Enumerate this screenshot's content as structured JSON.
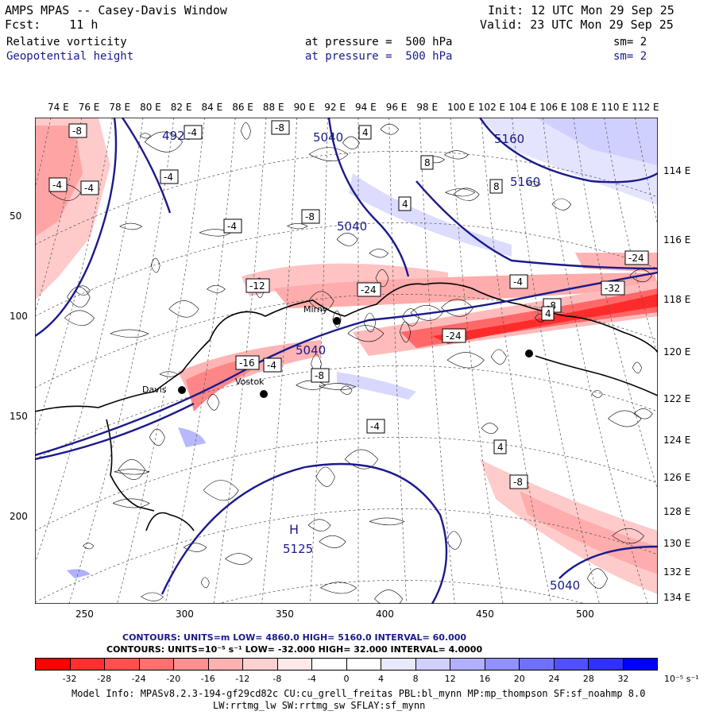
{
  "header": {
    "title": "AMPS MPAS -- Casey-Davis Window",
    "fcst": "Fcst:    11 h",
    "init": "Init: 12 UTC Mon 29 Sep 25",
    "valid": "Valid: 23 UTC Mon 29 Sep 25",
    "field1": "Relative vorticity",
    "field2": "Geopotential height",
    "pressure1": "at pressure =  500 hPa",
    "pressure2": "at pressure =  500 hPa",
    "sm1": "sm= 2",
    "sm2": "sm= 2"
  },
  "axes": {
    "top_ticks": [
      "74 E",
      "76 E",
      "78 E",
      "80 E",
      "82 E",
      "84 E",
      "86 E",
      "88 E",
      "90 E",
      "92 E",
      "94 E",
      "96 E",
      "98 E",
      "100 E",
      "102 E",
      "104 E",
      "106 E",
      "108 E",
      "110 E",
      "112 E"
    ],
    "right_ticks": [
      "114 E",
      "116 E",
      "118 E",
      "120 E",
      "122 E",
      "124 E",
      "126 E",
      "128 E",
      "130 E",
      "132 E",
      "134 E"
    ],
    "left_ticks": [
      "50",
      "100",
      "150",
      "200"
    ],
    "bottom_ticks": [
      "250",
      "300",
      "350",
      "400",
      "450",
      "500"
    ]
  },
  "map": {
    "places": [
      "Davis",
      "Mirny",
      "Vostok"
    ],
    "height_labels": [
      "4920",
      "5040",
      "5040",
      "5040",
      "5160",
      "5160",
      "5040"
    ],
    "high_label": "H",
    "high_value": "5125",
    "vorticity_labels": [
      "-8",
      "-4",
      "-8",
      "-4",
      "-4",
      "-4",
      "-4",
      "-8",
      "-12",
      "-24",
      "-24",
      "-32",
      "-24",
      "-8",
      "-4",
      "4",
      "4",
      "8",
      "8",
      "-16",
      "-4",
      "-8",
      "-4",
      "4",
      "-8",
      "4"
    ]
  },
  "info": {
    "line1": "CONTOURS:  UNITS=m  LOW=  4860.0       HIGH=  5160.0       INTERVAL=   60.000",
    "line2": "CONTOURS:  UNITS=10⁻⁵ s⁻¹  LOW=  -32.000       HIGH=  32.000      INTERVAL=   4.0000"
  },
  "colorbar": {
    "labels": [
      "-32",
      "-28",
      "-24",
      "-20",
      "-16",
      "-12",
      "-8",
      "-4",
      "0",
      "4",
      "8",
      "12",
      "16",
      "20",
      "24",
      "28",
      "32"
    ],
    "units": "10⁻⁵ s⁻¹",
    "colors": [
      "#ff0000",
      "#ff3030",
      "#ff5050",
      "#ff7070",
      "#ff9090",
      "#ffb0b0",
      "#ffd0d0",
      "#ffe8e8",
      "#ffffff",
      "#ffffff",
      "#e8e8ff",
      "#d0d0ff",
      "#b0b0ff",
      "#9090ff",
      "#7070ff",
      "#5050ff",
      "#3030ff",
      "#0000ff"
    ]
  },
  "model_info": {
    "line1": "Model Info: MPASv8.2.3-194-gf29cd82c CU:cu_grell_freitas PBL:bl_mynn MP:mp_thompson SF:sf_noahmp 8.0",
    "line2": "LW:rrtmg_lw SW:rrtmg_sw SFLAY:sf_mynn"
  }
}
